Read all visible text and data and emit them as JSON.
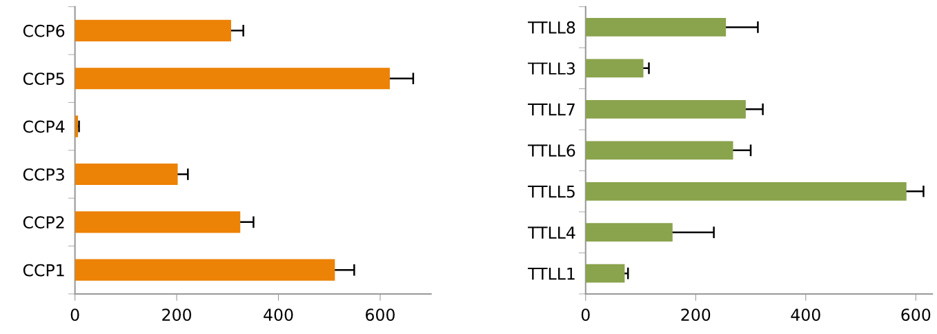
{
  "chart_data": [
    {
      "type": "bar",
      "orientation": "horizontal",
      "categories": [
        "CCP6",
        "CCP5",
        "CCP4",
        "CCP3",
        "CCP2",
        "CCP1"
      ],
      "values": [
        307,
        619,
        6,
        202,
        325,
        511
      ],
      "color": "#ec8206",
      "errors": [
        24,
        46,
        2,
        20,
        26,
        38
      ],
      "xlim": [
        0,
        700
      ],
      "xticks": [
        0,
        200,
        400,
        600
      ],
      "grid": false,
      "legend": false
    },
    {
      "type": "bar",
      "orientation": "horizontal",
      "categories": [
        "TTLL8",
        "TTLL3",
        "TTLL7",
        "TTLL6",
        "TTLL5",
        "TTLL4",
        "TTLL1"
      ],
      "values": [
        255,
        105,
        291,
        268,
        583,
        158,
        71
      ],
      "color": "#8aa34d",
      "errors": [
        58,
        10,
        31,
        32,
        31,
        75,
        6
      ],
      "xlim": [
        0,
        630
      ],
      "xticks": [
        0,
        200,
        400,
        600
      ],
      "grid": false,
      "legend": false
    }
  ]
}
